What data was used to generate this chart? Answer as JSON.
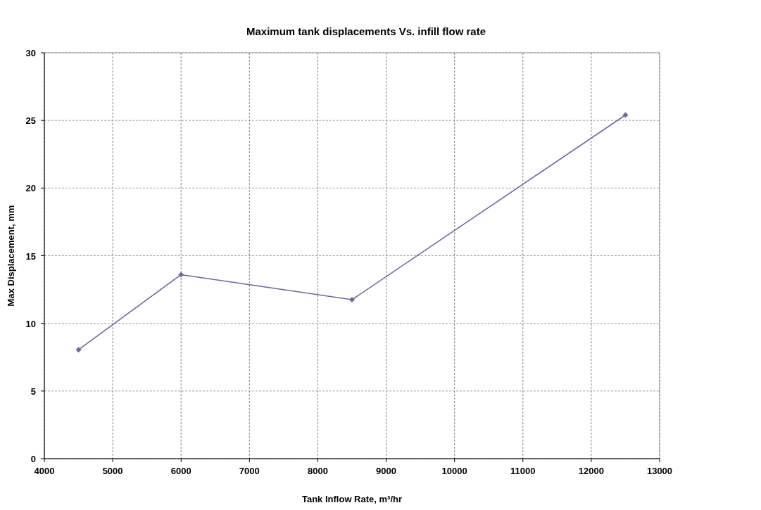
{
  "chart_data": {
    "type": "line",
    "title": "Maximum tank displacements Vs. infill flow rate",
    "xlabel": "Tank Inflow Rate, m³/hr",
    "ylabel": "Max Displacement, mm",
    "x": [
      4500,
      6000,
      8500,
      12500
    ],
    "series": [
      {
        "color": "#6a6a9e",
        "values": [
          8.05,
          13.6,
          11.75,
          25.4
        ]
      }
    ],
    "xlim": [
      4000,
      13000
    ],
    "xticks": [
      4000,
      5000,
      6000,
      7000,
      8000,
      9000,
      10000,
      11000,
      12000,
      13000
    ],
    "ylim": [
      0,
      30
    ],
    "yticks": [
      0,
      5,
      10,
      15,
      20,
      25,
      30
    ],
    "grid": true,
    "marker": "diamond",
    "line_style": "solid"
  }
}
